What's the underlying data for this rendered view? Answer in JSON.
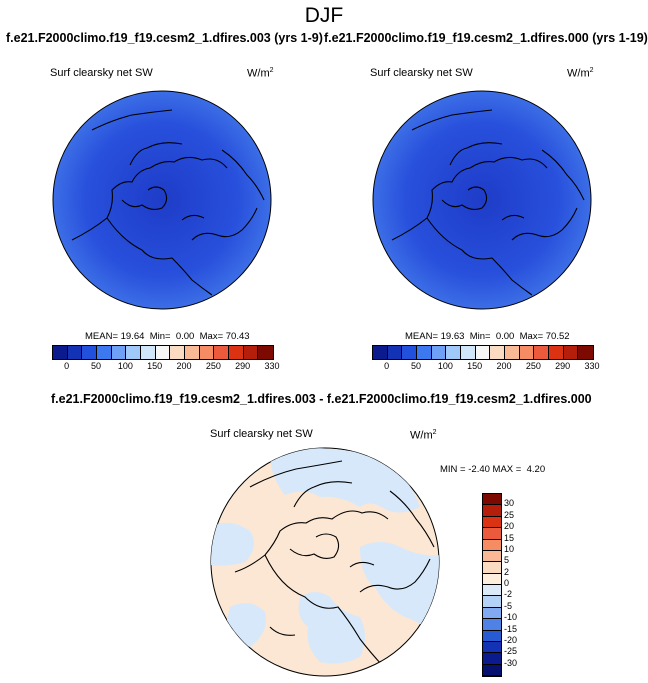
{
  "title": "DJF",
  "panel_left": {
    "case_name": "f.e21.F2000climo.f19_f19.cesm2_1.dfires.003 (yrs 1-9)",
    "variable": "Surf clearsky net SW",
    "units": "W/m",
    "units_exp": "2",
    "mean_label": "MEAN=",
    "mean": "19.64",
    "min_label": "Min=",
    "min": "0.00",
    "max_label": "Max=",
    "max": "70.43"
  },
  "panel_right": {
    "case_name": "f.e21.F2000climo.f19_f19.cesm2_1.dfires.000 (yrs 1-19)",
    "variable": "Surf clearsky net SW",
    "units": "W/m",
    "units_exp": "2",
    "mean_label": "MEAN=",
    "mean": "19.63",
    "min_label": "Min=",
    "min": "0.00",
    "max_label": "Max=",
    "max": "70.52"
  },
  "panel_diff": {
    "title": "f.e21.F2000climo.f19_f19.cesm2_1.dfires.003 - f.e21.F2000climo.f19_f19.cesm2_1.dfires.000",
    "variable": "Surf clearsky net SW",
    "units": "W/m",
    "units_exp": "2",
    "min_label": "MIN =",
    "min": "-2.40",
    "max_label": "MAX =",
    "max": "4.20"
  },
  "colorbar_main": {
    "ticks": [
      "0",
      "50",
      "100",
      "150",
      "200",
      "250",
      "290",
      "330"
    ],
    "colors": [
      "#0b1a8c",
      "#1432b4",
      "#2050dc",
      "#3c78f0",
      "#6ea0f5",
      "#a0c8f8",
      "#d2e6fa",
      "#f6f6f6",
      "#fadcc3",
      "#fab996",
      "#f58c64",
      "#eb5a3c",
      "#dc3214",
      "#b41e0a",
      "#7d0a00"
    ]
  },
  "colorbar_diff": {
    "ticks": [
      "30",
      "25",
      "20",
      "15",
      "10",
      "5",
      "2",
      "0",
      "-2",
      "-5",
      "-10",
      "-15",
      "-20",
      "-25",
      "-30"
    ],
    "colors": [
      "#7d0a00",
      "#b41e0a",
      "#dc3214",
      "#eb5a3c",
      "#f58c64",
      "#fab996",
      "#fadcc3",
      "#fdeedd",
      "#dceaf8",
      "#b4d2f5",
      "#82aaf0",
      "#5082e6",
      "#285ad2",
      "#1432b4",
      "#0b1a8c",
      "#06106e"
    ]
  },
  "map_colors": {
    "main_fill": "#2850dc",
    "main_edge": "#3c6ee6",
    "main_center": "#1e3cc8",
    "diff_fill": "#fbe7d3",
    "diff_blue": "#d7e8fa",
    "coast": "#000000"
  }
}
